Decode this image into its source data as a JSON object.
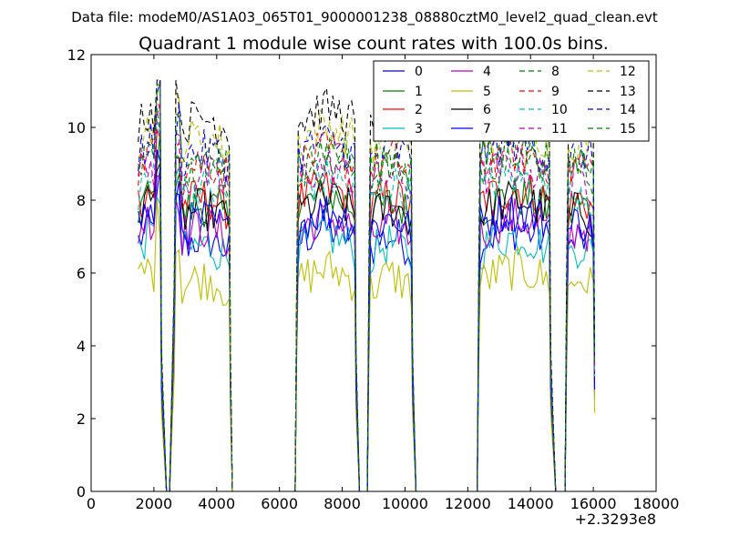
{
  "suptitle": "Data file: modeM0/AS1A03_065T01_9000001238_08880cztM0_level2_quad_clean.evt",
  "chart_data": {
    "type": "line",
    "title": "Quadrant 1 module wise count rates with 100.0s bins.",
    "xlabel": "",
    "ylabel": "",
    "x_offset_label": "+2.3293e8",
    "xlim": [
      0,
      18000
    ],
    "ylim": [
      0,
      12
    ],
    "xticks": [
      0,
      2000,
      4000,
      6000,
      8000,
      10000,
      12000,
      14000,
      16000,
      18000
    ],
    "yticks": [
      0,
      2,
      4,
      6,
      8,
      10,
      12
    ],
    "grid": false,
    "legend_position": "top-right",
    "segments": [
      {
        "start": 1500,
        "end": 2200
      },
      {
        "start": 2700,
        "end": 4400
      },
      {
        "start": 6600,
        "end": 8400
      },
      {
        "start": 8900,
        "end": 10200
      },
      {
        "start": 12400,
        "end": 14600
      },
      {
        "start": 15200,
        "end": 16000
      }
    ],
    "gaps_to_zero": [
      2400,
      2500,
      4500,
      6500,
      8550,
      8800,
      10350,
      12300,
      14800,
      15100
    ],
    "series": [
      {
        "name": "0",
        "color": "#0000ff",
        "dash": "solid",
        "level": 6.5
      },
      {
        "name": "1",
        "color": "#008000",
        "dash": "solid",
        "level": 7.4
      },
      {
        "name": "2",
        "color": "#ff0000",
        "dash": "solid",
        "level": 7.6
      },
      {
        "name": "3",
        "color": "#00bfbf",
        "dash": "solid",
        "level": 6.3
      },
      {
        "name": "4",
        "color": "#bf00bf",
        "dash": "solid",
        "level": 6.8
      },
      {
        "name": "5",
        "color": "#bfbf00",
        "dash": "solid",
        "level": 5.4
      },
      {
        "name": "6",
        "color": "#000000",
        "dash": "solid",
        "level": 7.3
      },
      {
        "name": "7",
        "color": "#0000ff",
        "dash": "solid",
        "level": 7.0
      },
      {
        "name": "8",
        "color": "#008000",
        "dash": "dashed",
        "level": 8.4
      },
      {
        "name": "9",
        "color": "#ff0000",
        "dash": "dashed",
        "level": 8.6
      },
      {
        "name": "10",
        "color": "#00bfbf",
        "dash": "dashed",
        "level": 7.9
      },
      {
        "name": "11",
        "color": "#bf00bf",
        "dash": "dashed",
        "level": 8.2
      },
      {
        "name": "12",
        "color": "#bfbf00",
        "dash": "dashed",
        "level": 9.3
      },
      {
        "name": "13",
        "color": "#000000",
        "dash": "dashed",
        "level": 9.8
      },
      {
        "name": "14",
        "color": "#0000ff",
        "dash": "dashed",
        "level": 8.9
      },
      {
        "name": "15",
        "color": "#008000",
        "dash": "dashed",
        "level": 8.7
      }
    ]
  }
}
